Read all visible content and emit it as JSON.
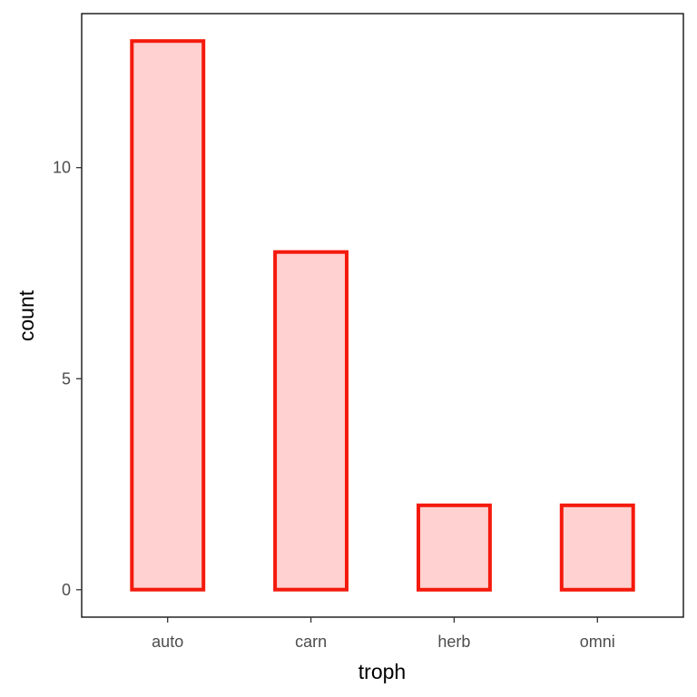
{
  "chart_data": {
    "type": "bar",
    "categories": [
      "auto",
      "carn",
      "herb",
      "omni"
    ],
    "values": [
      13,
      8,
      2,
      2
    ],
    "xlabel": "troph",
    "ylabel": "count",
    "ylim": [
      -0.65,
      13.65
    ],
    "yticks": [
      0,
      5,
      10
    ],
    "ytick_labels": [
      "0",
      "5",
      "10"
    ],
    "bar_fill": "#ffd1d0",
    "bar_stroke": "#f41a0d",
    "grid": false,
    "legend": "none"
  }
}
